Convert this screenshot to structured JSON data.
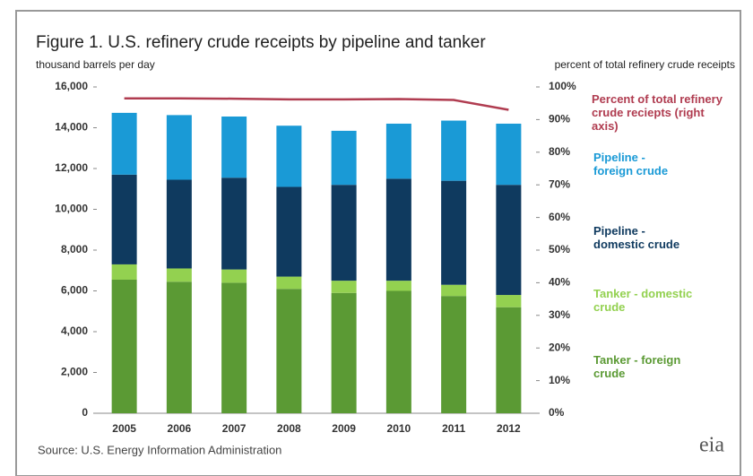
{
  "chart_data": {
    "type": "bar",
    "title": "Figure 1. U.S. refinery crude receipts by pipeline and tanker",
    "y_label": "thousand barrels per day",
    "y2_label": "percent of total refinery crude receipts",
    "source": "Source:  U.S. Energy Information Administration",
    "logo": "eia",
    "stacked": true,
    "categories": [
      "2005",
      "2006",
      "2007",
      "2008",
      "2009",
      "2010",
      "2011",
      "2012"
    ],
    "series": [
      {
        "name": "Tanker - foreign crude",
        "color": "#5b9a34",
        "values": [
          6550,
          6450,
          6400,
          6100,
          5900,
          6000,
          5750,
          5200
        ]
      },
      {
        "name": "Tanker - domestic crude",
        "color": "#93d150",
        "values": [
          750,
          650,
          650,
          600,
          600,
          500,
          550,
          600
        ]
      },
      {
        "name": "Pipeline - domestic crude",
        "color": "#0f3a5f",
        "values": [
          4400,
          4350,
          4500,
          4400,
          4700,
          5000,
          5100,
          5400
        ]
      },
      {
        "name": "Pipeline - foreign crude",
        "color": "#1a9ad6",
        "values": [
          3030,
          3170,
          3000,
          3000,
          2650,
          2700,
          2950,
          3000
        ]
      },
      {
        "name": "Percent of total refinery crude reciepts (right axis)",
        "color": "#b03c50",
        "type": "line",
        "axis": "y2",
        "values": [
          96.5,
          96.5,
          96.4,
          96.2,
          96.2,
          96.3,
          96.0,
          93.0
        ]
      }
    ],
    "ylim": [
      0,
      16000
    ],
    "yticks": [
      0,
      {
        "value": 2000,
        "label": "2,000"
      },
      {
        "value": 4000,
        "label": "4,000"
      },
      {
        "value": 6000,
        "label": "6,000"
      },
      {
        "value": 8000,
        "label": "8,000"
      },
      {
        "value": 10000,
        "label": "10,000"
      },
      {
        "value": 12000,
        "label": "12,000"
      },
      {
        "value": 14000,
        "label": "14,000"
      },
      {
        "value": 16000,
        "label": "16,000"
      }
    ],
    "y2lim": [
      0,
      100
    ],
    "y2ticks": [
      {
        "value": 0,
        "label": "0%"
      },
      {
        "value": 10,
        "label": "10%"
      },
      {
        "value": 20,
        "label": "20%"
      },
      {
        "value": 30,
        "label": "30%"
      },
      {
        "value": 40,
        "label": "40%"
      },
      {
        "value": 50,
        "label": "50%"
      },
      {
        "value": 60,
        "label": "60%"
      },
      {
        "value": 70,
        "label": "70%"
      },
      {
        "value": 80,
        "label": "80%"
      },
      {
        "value": 90,
        "label": "90%"
      },
      {
        "value": 100,
        "label": "100%"
      }
    ],
    "grid": false
  }
}
